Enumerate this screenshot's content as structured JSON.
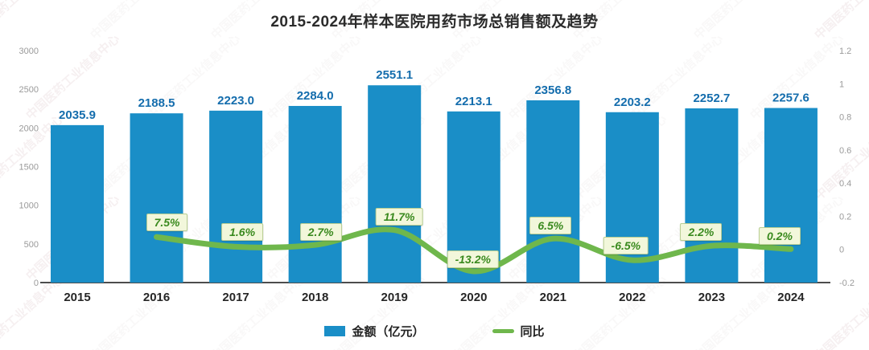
{
  "title": "2015-2024年样本医院用药市场总销售额及趋势",
  "watermark": {
    "text": "中国医药工业信息中心"
  },
  "chart_data": {
    "type": "bar",
    "subtype": "bar+line combo, dual axis",
    "title": "2015-2024年样本医院用药市场总销售额及趋势",
    "categories": [
      "2015",
      "2016",
      "2017",
      "2018",
      "2019",
      "2020",
      "2021",
      "2022",
      "2023",
      "2024"
    ],
    "series": [
      {
        "name": "金额（亿元）",
        "type": "bar",
        "axis": "left",
        "values": [
          2035.9,
          2188.5,
          2223.0,
          2284.0,
          2551.1,
          2213.1,
          2356.8,
          2203.2,
          2252.7,
          2257.6
        ],
        "labels": [
          "2035.9",
          "2188.5",
          "2223.0",
          "2284.0",
          "2551.1",
          "2213.1",
          "2356.8",
          "2203.2",
          "2252.7",
          "2257.6"
        ]
      },
      {
        "name": "同比",
        "type": "line",
        "axis": "right",
        "values": [
          null,
          0.075,
          0.016,
          0.027,
          0.117,
          -0.132,
          0.065,
          -0.065,
          0.022,
          0.002
        ],
        "labels": [
          null,
          "7.5%",
          "1.6%",
          "2.7%",
          "11.7%",
          "-13.2%",
          "6.5%",
          "-6.5%",
          "2.2%",
          "0.2%"
        ]
      }
    ],
    "left_axis": {
      "min": 0,
      "max": 3000,
      "ticks": [
        0,
        500,
        1000,
        1500,
        2000,
        2500,
        3000
      ]
    },
    "right_axis": {
      "min": -0.2,
      "max": 1.2,
      "ticks": [
        -0.2,
        0,
        0.2,
        0.4,
        0.6,
        0.8,
        1,
        1.2
      ]
    },
    "legend": [
      "金额（亿元）",
      "同比"
    ],
    "legend_position": "bottom",
    "grid": false,
    "colors": {
      "bar": "#1a8ec7",
      "bar_label": "#146dad",
      "line": "#6fb74c",
      "pct_text": "#3a8a1f",
      "pct_bg": "#f2f7db",
      "pct_border": "#b9cf93",
      "axis_label": "#9a9a9a",
      "axis_line": "#4d4d4d",
      "x_label": "#262626",
      "title": "#2b2b2b"
    },
    "label_offsets": [
      null,
      [
        13,
        -18
      ],
      [
        8,
        -18
      ],
      [
        7,
        -16
      ],
      [
        6,
        -17
      ],
      [
        -1,
        -15
      ],
      [
        -3,
        -16
      ],
      [
        -8,
        -18
      ],
      [
        -13,
        -17
      ],
      [
        -14,
        -16
      ]
    ]
  }
}
